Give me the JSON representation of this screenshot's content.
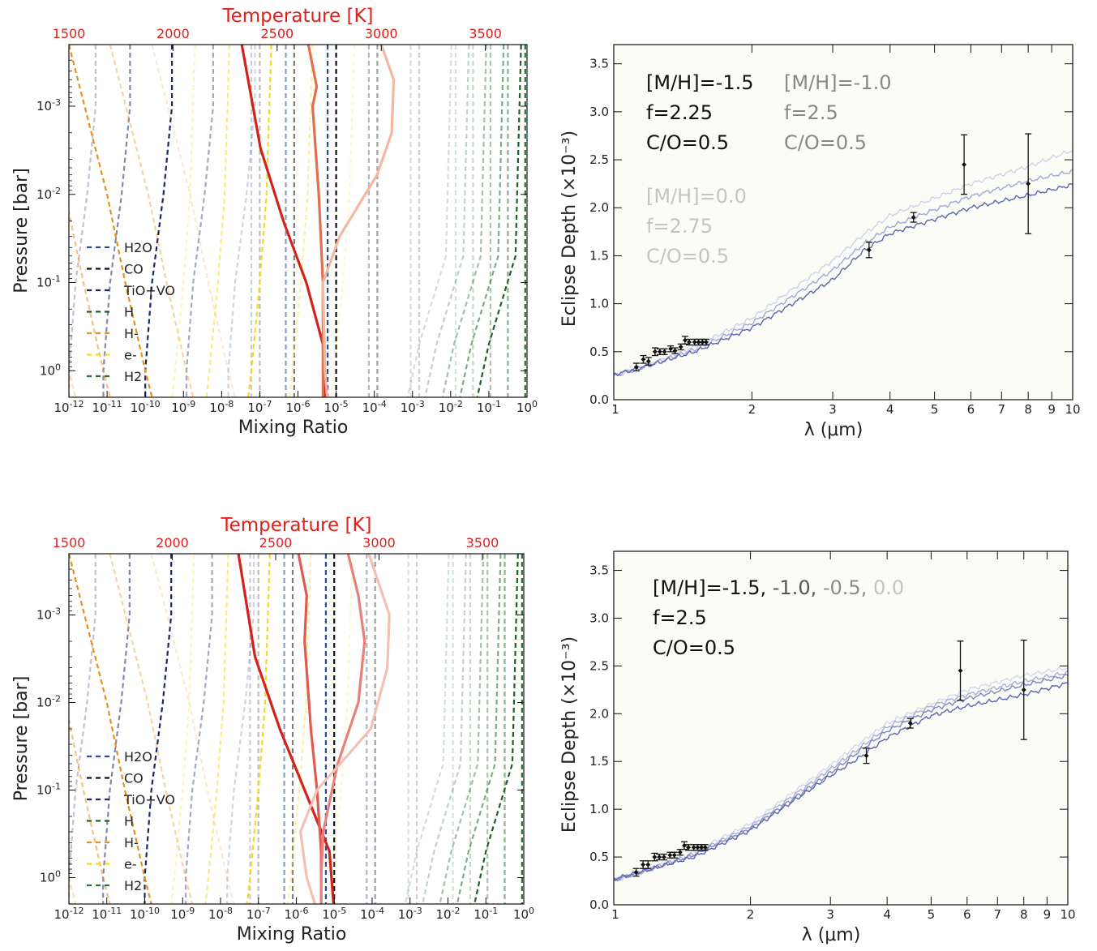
{
  "chart_data": [
    {
      "type": "line",
      "panel": "top-left",
      "xlabel": "Mixing Ratio",
      "ylabel": "Pressure [bar]",
      "top_axis_title": "Temperature [K]",
      "top_ticks": [
        "1500",
        "2000",
        "2500",
        "3000",
        "3500"
      ],
      "top_tick_values": [
        1500,
        2000,
        2500,
        3000,
        3500
      ],
      "temperature_range": [
        1500,
        3700
      ],
      "xscale": "log",
      "yscale": "log",
      "xlim": [
        1e-12,
        1
      ],
      "ylim": [
        2,
        0.0002
      ],
      "x_ticks": [
        "10-12",
        "10-11",
        "10-10",
        "10-9",
        "10-8",
        "10-7",
        "10-6",
        "10-5",
        "10-4",
        "10-3",
        "10-2",
        "10-1",
        "100"
      ],
      "y_ticks": [
        "10-3",
        "10-2",
        "10-1",
        "100"
      ],
      "legend": [
        "H2O",
        "CO",
        "TiO+VO",
        "H",
        "H-",
        "e-",
        "H2"
      ],
      "legend_colors": [
        "#2b4a94",
        "#111111",
        "#1c2566",
        "#1e5e28",
        "#e8901c",
        "#f0dc1c",
        "#2e6e35"
      ],
      "temperature_profiles": [
        {
          "color": "#d4211a",
          "pressure": [
            0.0002,
            0.003,
            0.02,
            0.1,
            0.5,
            2
          ],
          "temperature": [
            2330,
            2420,
            2530,
            2640,
            2720,
            2730
          ]
        },
        {
          "color": "#e07050",
          "pressure": [
            0.0002,
            0.0006,
            0.001,
            0.01,
            0.1,
            1,
            2
          ],
          "temperature": [
            2650,
            2690,
            2670,
            2700,
            2720,
            2720,
            2720
          ]
        },
        {
          "color": "#f2b8a0",
          "pressure": [
            0.0002,
            0.0005,
            0.002,
            0.006,
            0.03,
            0.1,
            1,
            2
          ],
          "temperature": [
            3000,
            3060,
            3050,
            2980,
            2800,
            2720,
            2730,
            2740
          ]
        }
      ],
      "species_profiles": [
        {
          "name": "H2O",
          "color": "#2b4a94",
          "pressure": [
            0.0002,
            2
          ],
          "mixing_ratio": [
            6e-06,
            6e-06
          ]
        },
        {
          "name": "CO",
          "color": "#111111",
          "pressure": [
            0.0002,
            2
          ],
          "mixing_ratio": [
            1e-05,
            1e-05
          ]
        },
        {
          "name": "TiO+VO",
          "color": "#1c2566",
          "pressure": [
            0.0002,
            0.001,
            0.01,
            0.1,
            1,
            2
          ],
          "mixing_ratio": [
            5e-10,
            5e-10,
            3e-10,
            1.5e-10,
            1e-10,
            1e-10
          ]
        },
        {
          "name": "H",
          "color": "#1e5e28",
          "pressure": [
            0.0002,
            0.05,
            0.5,
            2
          ],
          "mixing_ratio": [
            0.7,
            0.5,
            0.1,
            0.05
          ]
        },
        {
          "name": "H-",
          "color": "#e8901c",
          "pressure": [
            0.0002,
            0.01,
            0.1,
            1,
            2
          ],
          "mixing_ratio": [
            1e-12,
            1e-11,
            3e-11,
            1e-10,
            1.5e-10
          ]
        },
        {
          "name": "e-",
          "color": "#f0dc1c",
          "pressure": [
            0.0002,
            0.01,
            0.1,
            1,
            2
          ],
          "mixing_ratio": [
            2e-07,
            1.5e-07,
            1e-07,
            6e-08,
            5e-08
          ]
        },
        {
          "name": "H2",
          "color": "#2e6e35",
          "pressure": [
            0.0002,
            2
          ],
          "mixing_ratio": [
            0.9,
            0.9
          ]
        }
      ]
    },
    {
      "type": "line",
      "panel": "top-right",
      "xlabel": "λ (μm)",
      "ylabel": "Eclipse Depth (×10⁻³)",
      "xscale": "log",
      "xlim": [
        1,
        10
      ],
      "ylim": [
        0,
        3.7
      ],
      "x_ticks": [
        "1",
        "2",
        "3",
        "4",
        "5",
        "6",
        "7",
        "8",
        "9",
        "10"
      ],
      "y_ticks": [
        "0.0",
        "0.5",
        "1.0",
        "1.5",
        "2.0",
        "2.5",
        "3.0",
        "3.5"
      ],
      "annotations": [
        {
          "lines": [
            "[M/H]=-1.5",
            "f=2.25",
            "C/O=0.5"
          ],
          "color": "#111111"
        },
        {
          "lines": [
            "[M/H]=-1.0",
            "f=2.5",
            "C/O=0.5"
          ],
          "color": "#888888"
        },
        {
          "lines": [
            "[M/H]=0.0",
            "f=2.75",
            "C/O=0.5"
          ],
          "color": "#c4c4c4"
        }
      ],
      "models": [
        {
          "color": "#5c66b0",
          "x": [
            1,
            1.2,
            1.5,
            2,
            3,
            3.5,
            4,
            5,
            6,
            8,
            10
          ],
          "y": [
            0.26,
            0.36,
            0.5,
            0.75,
            1.25,
            1.55,
            1.73,
            1.88,
            2.0,
            2.13,
            2.24
          ]
        },
        {
          "color": "#9ea8d6",
          "x": [
            1,
            1.2,
            1.5,
            2,
            3,
            3.5,
            4,
            5,
            6,
            8,
            10
          ],
          "y": [
            0.25,
            0.37,
            0.52,
            0.8,
            1.35,
            1.62,
            1.8,
            1.98,
            2.12,
            2.28,
            2.38
          ]
        },
        {
          "color": "#cdd2ea",
          "x": [
            1,
            1.2,
            1.5,
            2,
            3,
            3.5,
            4,
            5,
            6,
            8,
            10
          ],
          "y": [
            0.24,
            0.37,
            0.55,
            0.85,
            1.45,
            1.72,
            1.92,
            2.1,
            2.25,
            2.43,
            2.6
          ]
        }
      ],
      "observations": {
        "x": [
          1.12,
          1.16,
          1.19,
          1.23,
          1.26,
          1.29,
          1.33,
          1.36,
          1.4,
          1.43,
          1.46,
          1.5,
          1.53,
          1.56,
          1.59,
          3.6,
          4.5,
          5.8,
          8.0
        ],
        "y": [
          0.34,
          0.42,
          0.4,
          0.5,
          0.5,
          0.5,
          0.53,
          0.51,
          0.55,
          0.62,
          0.6,
          0.6,
          0.6,
          0.6,
          0.6,
          1.56,
          1.9,
          2.45,
          2.25
        ],
        "err": [
          0.04,
          0.04,
          0.04,
          0.04,
          0.03,
          0.03,
          0.03,
          0.03,
          0.03,
          0.04,
          0.03,
          0.03,
          0.03,
          0.03,
          0.03,
          0.08,
          0.05,
          0.31,
          0.52
        ]
      }
    },
    {
      "type": "line",
      "panel": "bottom-left",
      "xlabel": "Mixing Ratio",
      "ylabel": "Pressure [bar]",
      "top_axis_title": "Temperature [K]",
      "top_ticks": [
        "1500",
        "2000",
        "2500",
        "3000",
        "3500"
      ],
      "top_tick_values": [
        1500,
        2000,
        2500,
        3000,
        3500
      ],
      "temperature_range": [
        1500,
        3700
      ],
      "xscale": "log",
      "yscale": "log",
      "xlim": [
        1e-12,
        1
      ],
      "ylim": [
        2,
        0.0002
      ],
      "x_ticks": [
        "10-12",
        "10-11",
        "10-10",
        "10-9",
        "10-8",
        "10-7",
        "10-6",
        "10-5",
        "10-4",
        "10-3",
        "10-2",
        "10-1",
        "100"
      ],
      "y_ticks": [
        "10-3",
        "10-2",
        "10-1",
        "100"
      ],
      "legend": [
        "H2O",
        "CO",
        "TiO+VO",
        "H",
        "H-",
        "e-",
        "H2"
      ],
      "legend_colors": [
        "#2b4a94",
        "#111111",
        "#1c2566",
        "#1e5e28",
        "#e8901c",
        "#f0dc1c",
        "#2e6e35"
      ],
      "temperature_profiles": [
        {
          "color": "#d4211a",
          "pressure": [
            0.0002,
            0.003,
            0.02,
            0.1,
            0.5,
            2
          ],
          "temperature": [
            2320,
            2400,
            2520,
            2640,
            2760,
            2780
          ]
        },
        {
          "color": "#e05a50",
          "pressure": [
            0.0002,
            0.0006,
            0.002,
            0.02,
            0.1,
            0.5,
            1,
            2
          ],
          "temperature": [
            2610,
            2650,
            2640,
            2670,
            2700,
            2720,
            2720,
            2720
          ]
        },
        {
          "color": "#e88078",
          "pressure": [
            0.0002,
            0.0006,
            0.002,
            0.01,
            0.05,
            0.3,
            1,
            2
          ],
          "temperature": [
            2850,
            2900,
            2930,
            2900,
            2800,
            2730,
            2720,
            2720
          ]
        },
        {
          "color": "#f4c0b4",
          "pressure": [
            0.0002,
            0.001,
            0.004,
            0.02,
            0.1,
            0.3,
            1,
            2
          ],
          "temperature": [
            2950,
            3050,
            3040,
            2960,
            2700,
            2620,
            2650,
            2690
          ]
        }
      ],
      "species_profiles": [
        {
          "name": "H2O",
          "color": "#2b4a94",
          "pressure": [
            0.0002,
            2
          ],
          "mixing_ratio": [
            6e-06,
            6e-06
          ]
        },
        {
          "name": "CO",
          "color": "#111111",
          "pressure": [
            0.0002,
            2
          ],
          "mixing_ratio": [
            1e-05,
            1e-05
          ]
        },
        {
          "name": "TiO+VO",
          "color": "#1c2566",
          "pressure": [
            0.0002,
            0.001,
            0.01,
            0.1,
            1,
            2
          ],
          "mixing_ratio": [
            5e-10,
            5e-10,
            3e-10,
            1.5e-10,
            1e-10,
            1e-10
          ]
        },
        {
          "name": "H",
          "color": "#1e5e28",
          "pressure": [
            0.0002,
            0.05,
            0.5,
            2
          ],
          "mixing_ratio": [
            0.7,
            0.5,
            0.1,
            0.05
          ]
        },
        {
          "name": "H-",
          "color": "#e8901c",
          "pressure": [
            0.0002,
            0.01,
            0.1,
            1,
            2
          ],
          "mixing_ratio": [
            1e-12,
            1e-11,
            3e-11,
            1e-10,
            1.5e-10
          ]
        },
        {
          "name": "e-",
          "color": "#f0dc1c",
          "pressure": [
            0.0002,
            0.01,
            0.1,
            1,
            2
          ],
          "mixing_ratio": [
            2e-07,
            1.5e-07,
            1e-07,
            6e-08,
            5e-08
          ]
        },
        {
          "name": "H2",
          "color": "#2e6e35",
          "pressure": [
            0.0002,
            2
          ],
          "mixing_ratio": [
            0.9,
            0.9
          ]
        }
      ]
    },
    {
      "type": "line",
      "panel": "bottom-right",
      "xlabel": "λ (μm)",
      "ylabel": "Eclipse Depth (×10⁻³)",
      "xscale": "log",
      "xlim": [
        1,
        10
      ],
      "ylim": [
        0,
        3.7
      ],
      "x_ticks": [
        "1",
        "2",
        "3",
        "4",
        "5",
        "6",
        "7",
        "8",
        "9",
        "10"
      ],
      "y_ticks": [
        "0.0",
        "0.5",
        "1.0",
        "1.5",
        "2.0",
        "2.5",
        "3.0",
        "3.5"
      ],
      "annotation_line1_parts": [
        {
          "text": "[M/H]=-1.5, ",
          "color": "#111111"
        },
        {
          "text": "-1.0, ",
          "color": "#555555"
        },
        {
          "text": "-0.5, ",
          "color": "#8c8c8c"
        },
        {
          "text": "0.0",
          "color": "#c4c4c4"
        }
      ],
      "annotations": [
        {
          "lines": [
            "f=2.5",
            "C/O=0.5"
          ],
          "color": "#111111"
        }
      ],
      "models": [
        {
          "color": "#5c66b0",
          "x": [
            1,
            1.2,
            1.5,
            2,
            3,
            3.5,
            4,
            5,
            6,
            8,
            10
          ],
          "y": [
            0.27,
            0.37,
            0.5,
            0.78,
            1.35,
            1.55,
            1.75,
            1.98,
            2.08,
            2.2,
            2.32
          ]
        },
        {
          "color": "#7d87c0",
          "x": [
            1,
            1.2,
            1.5,
            2,
            3,
            3.5,
            4,
            5,
            6,
            8,
            10
          ],
          "y": [
            0.26,
            0.37,
            0.52,
            0.8,
            1.38,
            1.62,
            1.82,
            2.04,
            2.16,
            2.3,
            2.4
          ]
        },
        {
          "color": "#a6aed8",
          "x": [
            1,
            1.2,
            1.5,
            2,
            3,
            3.5,
            4,
            5,
            6,
            8,
            10
          ],
          "y": [
            0.26,
            0.37,
            0.53,
            0.82,
            1.42,
            1.65,
            1.86,
            2.08,
            2.2,
            2.34,
            2.43
          ]
        },
        {
          "color": "#d3d7ec",
          "x": [
            1,
            1.2,
            1.5,
            2,
            3,
            3.5,
            4,
            5,
            6,
            8,
            10
          ],
          "y": [
            0.25,
            0.38,
            0.55,
            0.85,
            1.46,
            1.7,
            1.9,
            2.1,
            2.25,
            2.4,
            2.48
          ]
        }
      ],
      "observations": {
        "x": [
          1.12,
          1.16,
          1.19,
          1.23,
          1.26,
          1.29,
          1.33,
          1.36,
          1.4,
          1.43,
          1.46,
          1.5,
          1.53,
          1.56,
          1.59,
          3.6,
          4.5,
          5.8,
          8.0
        ],
        "y": [
          0.34,
          0.42,
          0.42,
          0.5,
          0.5,
          0.5,
          0.52,
          0.52,
          0.55,
          0.62,
          0.6,
          0.6,
          0.6,
          0.6,
          0.6,
          1.56,
          1.9,
          2.45,
          2.25
        ],
        "err": [
          0.04,
          0.04,
          0.04,
          0.04,
          0.03,
          0.03,
          0.03,
          0.03,
          0.03,
          0.04,
          0.03,
          0.03,
          0.03,
          0.03,
          0.03,
          0.08,
          0.05,
          0.31,
          0.52
        ]
      }
    }
  ]
}
